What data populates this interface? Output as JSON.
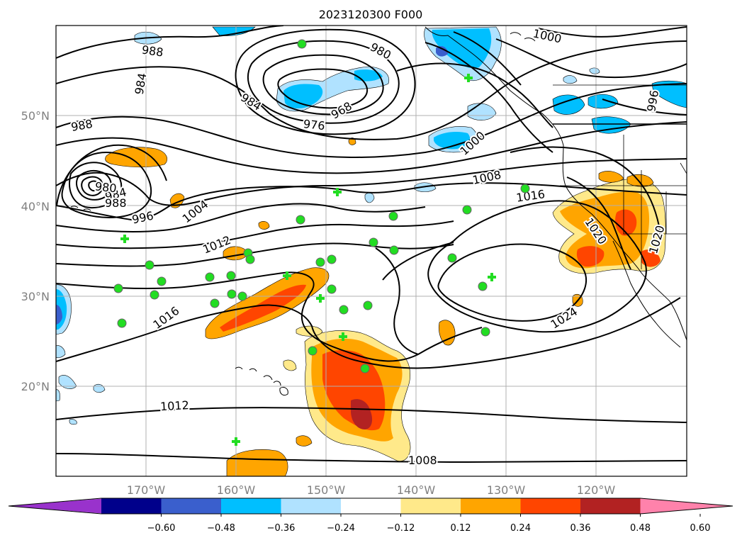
{
  "title": "2023120300 F000",
  "map": {
    "lon_range": [
      -180,
      -110
    ],
    "lat_range": [
      10,
      60
    ],
    "lat_labels": [
      "20°N",
      "30°N",
      "40°N",
      "50°N"
    ],
    "lon_labels": [
      "170°W",
      "160°W",
      "150°W",
      "140°W",
      "130°W",
      "120°W"
    ],
    "grid": true,
    "tick_label_color": "#808080"
  },
  "isobar_labels": [
    "1000",
    "988",
    "984",
    "980",
    "988",
    "984",
    "976",
    "968",
    "984",
    "980",
    "988",
    "996",
    "1004",
    "1012",
    "1008",
    "1016",
    "1000",
    "1016",
    "1024",
    "1020",
    "1020",
    "1012",
    "1008",
    "996"
  ],
  "colorbar": {
    "ticks": [
      "−0.60",
      "−0.48",
      "−0.36",
      "−0.24",
      "−0.12",
      "0.12",
      "0.24",
      "0.36",
      "0.48",
      "0.60"
    ],
    "colors": [
      "#9932cc",
      "#00008b",
      "#3a5fcd",
      "#00bfff",
      "#b0e2ff",
      "#ffffff",
      "#ffe98a",
      "#ffa500",
      "#ff4500",
      "#b22222",
      "#ff82ab"
    ],
    "extend": "both"
  },
  "colors": {
    "positive_anomaly": [
      "#ffe98a",
      "#ffa500",
      "#ff4500",
      "#b22222"
    ],
    "negative_anomaly": [
      "#b0e2ff",
      "#00bfff",
      "#3a5fcd"
    ],
    "station_marker": "#22dd22"
  }
}
